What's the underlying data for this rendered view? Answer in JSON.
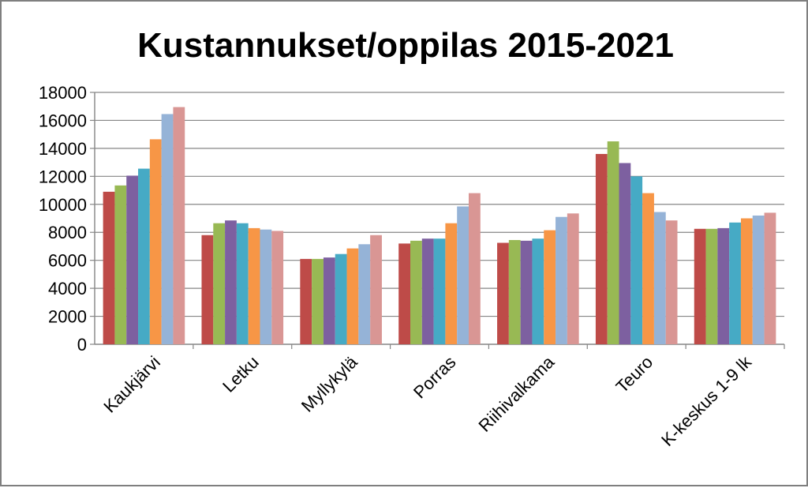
{
  "chart_data": {
    "type": "bar",
    "title": "Kustannukset/oppilas 2015-2021",
    "xlabel": "",
    "ylabel": "",
    "ylim": [
      0,
      18000
    ],
    "yticks": [
      0,
      2000,
      4000,
      6000,
      8000,
      10000,
      12000,
      14000,
      16000,
      18000
    ],
    "grid": true,
    "legend": "none",
    "categories": [
      "Kaukjärvi",
      "Letku",
      "Myllykylä",
      "Porras",
      "Riihivalkama",
      "Teuro",
      "K-keskus 1-9 lk"
    ],
    "series": [
      {
        "color": "#be4b48",
        "values": [
          10900,
          7800,
          6100,
          7200,
          7250,
          13600,
          8250
        ]
      },
      {
        "color": "#98b954",
        "values": [
          11350,
          8650,
          6100,
          7400,
          7450,
          14500,
          8250
        ]
      },
      {
        "color": "#7d60a0",
        "values": [
          12050,
          8850,
          6200,
          7550,
          7400,
          12950,
          8300
        ]
      },
      {
        "color": "#46aac5",
        "values": [
          12550,
          8650,
          6450,
          7550,
          7550,
          12000,
          8700
        ]
      },
      {
        "color": "#f79646",
        "values": [
          14650,
          8300,
          6850,
          8650,
          8150,
          10800,
          9000
        ]
      },
      {
        "color": "#95b3d7",
        "values": [
          16450,
          8200,
          7150,
          9850,
          9100,
          9450,
          9200
        ]
      },
      {
        "color": "#d99694",
        "values": [
          16950,
          8100,
          7800,
          10800,
          9350,
          8850,
          9400
        ]
      }
    ]
  }
}
